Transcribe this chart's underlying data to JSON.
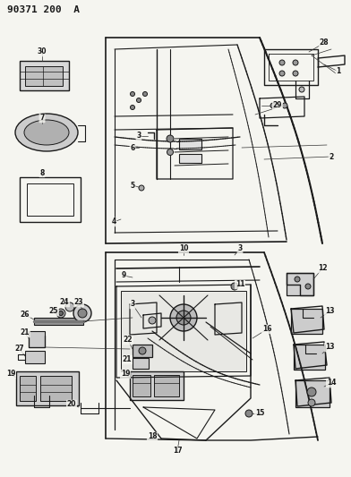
{
  "title": "90371 200  A",
  "bg_color": "#f5f5f0",
  "line_color": "#1a1a1a",
  "fig_width": 3.92,
  "fig_height": 5.33,
  "dpi": 100
}
